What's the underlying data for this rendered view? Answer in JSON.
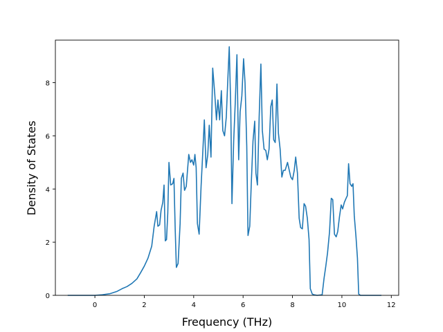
{
  "chart_data": {
    "type": "line",
    "title": "",
    "xlabel": "Frequency (THz)",
    "ylabel": "Density of States",
    "xlim": [
      -1.6,
      12.3
    ],
    "ylim": [
      0,
      9.6
    ],
    "x_ticks": [
      0,
      2,
      4,
      6,
      8,
      10,
      12
    ],
    "y_ticks": [
      0,
      2,
      4,
      6,
      8
    ],
    "grid": false,
    "legend": "none",
    "series": [
      {
        "color": "#1f77b4",
        "points": [
          [
            -1.1,
            0
          ],
          [
            0.0,
            0
          ],
          [
            0.3,
            0.02
          ],
          [
            0.6,
            0.06
          ],
          [
            0.9,
            0.15
          ],
          [
            1.1,
            0.25
          ],
          [
            1.3,
            0.33
          ],
          [
            1.5,
            0.45
          ],
          [
            1.7,
            0.62
          ],
          [
            1.85,
            0.85
          ],
          [
            2.0,
            1.1
          ],
          [
            2.15,
            1.4
          ],
          [
            2.3,
            1.85
          ],
          [
            2.4,
            2.6
          ],
          [
            2.5,
            3.15
          ],
          [
            2.55,
            2.6
          ],
          [
            2.62,
            2.65
          ],
          [
            2.68,
            3.2
          ],
          [
            2.75,
            3.5
          ],
          [
            2.8,
            4.15
          ],
          [
            2.85,
            2.05
          ],
          [
            2.9,
            2.1
          ],
          [
            2.95,
            3.1
          ],
          [
            3.0,
            5.0
          ],
          [
            3.07,
            4.15
          ],
          [
            3.15,
            4.2
          ],
          [
            3.2,
            4.4
          ],
          [
            3.25,
            2.5
          ],
          [
            3.3,
            1.05
          ],
          [
            3.37,
            1.2
          ],
          [
            3.45,
            2.7
          ],
          [
            3.5,
            4.4
          ],
          [
            3.57,
            4.6
          ],
          [
            3.63,
            3.95
          ],
          [
            3.7,
            4.1
          ],
          [
            3.8,
            5.3
          ],
          [
            3.87,
            5.0
          ],
          [
            3.93,
            5.1
          ],
          [
            4.0,
            4.9
          ],
          [
            4.05,
            5.3
          ],
          [
            4.1,
            4.8
          ],
          [
            4.15,
            2.7
          ],
          [
            4.22,
            2.3
          ],
          [
            4.3,
            4.1
          ],
          [
            4.37,
            5.4
          ],
          [
            4.43,
            6.6
          ],
          [
            4.5,
            4.8
          ],
          [
            4.57,
            5.3
          ],
          [
            4.63,
            6.4
          ],
          [
            4.7,
            5.2
          ],
          [
            4.77,
            8.55
          ],
          [
            4.85,
            7.6
          ],
          [
            4.92,
            6.6
          ],
          [
            4.98,
            7.35
          ],
          [
            5.05,
            6.6
          ],
          [
            5.12,
            7.7
          ],
          [
            5.18,
            6.2
          ],
          [
            5.25,
            6.0
          ],
          [
            5.32,
            6.7
          ],
          [
            5.38,
            8.1
          ],
          [
            5.44,
            9.35
          ],
          [
            5.5,
            7.0
          ],
          [
            5.55,
            3.45
          ],
          [
            5.62,
            5.8
          ],
          [
            5.68,
            7.2
          ],
          [
            5.75,
            9.05
          ],
          [
            5.82,
            5.1
          ],
          [
            5.88,
            6.9
          ],
          [
            5.95,
            7.5
          ],
          [
            6.02,
            8.9
          ],
          [
            6.08,
            8.0
          ],
          [
            6.15,
            5.6
          ],
          [
            6.2,
            2.25
          ],
          [
            6.27,
            2.6
          ],
          [
            6.33,
            4.2
          ],
          [
            6.4,
            5.8
          ],
          [
            6.47,
            6.55
          ],
          [
            6.52,
            4.6
          ],
          [
            6.58,
            4.15
          ],
          [
            6.65,
            6.7
          ],
          [
            6.72,
            8.7
          ],
          [
            6.78,
            6.2
          ],
          [
            6.85,
            5.5
          ],
          [
            6.92,
            5.45
          ],
          [
            6.98,
            5.1
          ],
          [
            7.05,
            5.5
          ],
          [
            7.12,
            7.1
          ],
          [
            7.18,
            7.35
          ],
          [
            7.24,
            5.85
          ],
          [
            7.3,
            5.75
          ],
          [
            7.37,
            7.95
          ],
          [
            7.43,
            6.1
          ],
          [
            7.5,
            5.5
          ],
          [
            7.57,
            4.45
          ],
          [
            7.63,
            4.7
          ],
          [
            7.7,
            4.7
          ],
          [
            7.8,
            5.0
          ],
          [
            7.87,
            4.7
          ],
          [
            7.93,
            4.45
          ],
          [
            8.0,
            4.35
          ],
          [
            8.07,
            4.7
          ],
          [
            8.13,
            5.2
          ],
          [
            8.2,
            4.6
          ],
          [
            8.27,
            2.9
          ],
          [
            8.33,
            2.55
          ],
          [
            8.4,
            2.5
          ],
          [
            8.47,
            3.45
          ],
          [
            8.53,
            3.35
          ],
          [
            8.6,
            2.9
          ],
          [
            8.67,
            2.1
          ],
          [
            8.72,
            0.25
          ],
          [
            8.8,
            0.05
          ],
          [
            8.87,
            0.02
          ],
          [
            9.0,
            0
          ],
          [
            9.2,
            0.02
          ],
          [
            9.28,
            0.65
          ],
          [
            9.35,
            1.1
          ],
          [
            9.42,
            1.6
          ],
          [
            9.5,
            2.4
          ],
          [
            9.57,
            3.65
          ],
          [
            9.63,
            3.6
          ],
          [
            9.7,
            2.3
          ],
          [
            9.77,
            2.2
          ],
          [
            9.83,
            2.4
          ],
          [
            9.9,
            2.95
          ],
          [
            9.97,
            3.4
          ],
          [
            10.03,
            3.25
          ],
          [
            10.1,
            3.5
          ],
          [
            10.17,
            3.65
          ],
          [
            10.22,
            3.75
          ],
          [
            10.27,
            4.95
          ],
          [
            10.33,
            4.2
          ],
          [
            10.4,
            4.1
          ],
          [
            10.45,
            4.2
          ],
          [
            10.5,
            3.0
          ],
          [
            10.57,
            2.2
          ],
          [
            10.63,
            1.4
          ],
          [
            10.68,
            0.05
          ],
          [
            10.75,
            0
          ],
          [
            11.0,
            0
          ],
          [
            11.3,
            0
          ],
          [
            11.6,
            0
          ]
        ]
      }
    ]
  }
}
